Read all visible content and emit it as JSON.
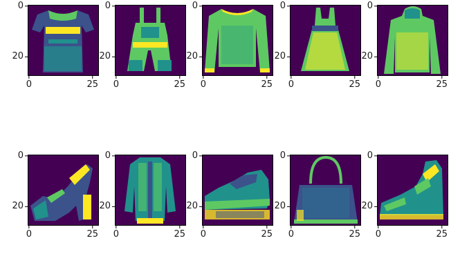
{
  "chart_data": {
    "type": "image-grid",
    "rows": 2,
    "cols": 5,
    "colormap": "viridis",
    "colors": {
      "background": "#440154",
      "dark": "#3b528b",
      "mid": "#21918c",
      "light": "#5ec962",
      "bright": "#fde725",
      "axis": "#000000"
    },
    "panels": [
      {
        "subject": "t-shirt",
        "xticks": [
          "0",
          "25"
        ],
        "yticks": [
          "0",
          "20"
        ]
      },
      {
        "subject": "overalls",
        "xticks": [
          "0",
          "25"
        ],
        "yticks": [
          "0",
          "20"
        ]
      },
      {
        "subject": "sweater",
        "xticks": [
          "0",
          "25"
        ],
        "yticks": [
          "0",
          "20"
        ]
      },
      {
        "subject": "dress",
        "xticks": [
          "0",
          "25"
        ],
        "yticks": [
          "0",
          "20"
        ]
      },
      {
        "subject": "hoodie",
        "xticks": [
          "0",
          "25"
        ],
        "yticks": [
          "0",
          "20"
        ]
      },
      {
        "subject": "sandal",
        "xticks": [
          "0",
          "25"
        ],
        "yticks": [
          "0",
          "20"
        ]
      },
      {
        "subject": "coat",
        "xticks": [
          "0",
          "25"
        ],
        "yticks": [
          "0",
          "20"
        ]
      },
      {
        "subject": "sneaker",
        "xticks": [
          "0",
          "25"
        ],
        "yticks": [
          "0",
          "20"
        ]
      },
      {
        "subject": "bag",
        "xticks": [
          "0",
          "25"
        ],
        "yticks": [
          "0",
          "20"
        ]
      },
      {
        "subject": "ankle-boot",
        "xticks": [
          "0",
          "25"
        ],
        "yticks": [
          "0",
          "20"
        ]
      }
    ]
  }
}
